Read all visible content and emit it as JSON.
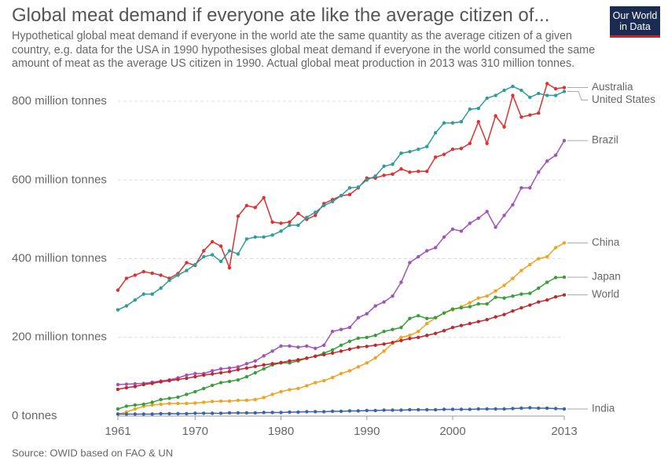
{
  "chart_data": {
    "type": "line",
    "title": "Global meat demand if everyone ate like the average citizen of...",
    "subtitle": "Hypothetical global meat demand if everyone in the world ate the same quantity as the average citizen of a given country, e.g. data for the USA in 1990 hypothesises global meat demand if everyone in the world consumed the same amount of meat as the average US citizen in 1990. Actual global meat production in 2013 was 310 million tonnes.",
    "source": "Source: OWID based on FAO & UN",
    "logo": [
      "Our World",
      "in Data"
    ],
    "x": [
      1961,
      1962,
      1963,
      1964,
      1965,
      1966,
      1967,
      1968,
      1969,
      1970,
      1971,
      1972,
      1973,
      1974,
      1975,
      1976,
      1977,
      1978,
      1979,
      1980,
      1981,
      1982,
      1983,
      1984,
      1985,
      1986,
      1987,
      1988,
      1989,
      1990,
      1991,
      1992,
      1993,
      1994,
      1995,
      1996,
      1997,
      1998,
      1999,
      2000,
      2001,
      2002,
      2003,
      2004,
      2005,
      2006,
      2007,
      2008,
      2009,
      2010,
      2011,
      2012,
      2013
    ],
    "xlim": [
      1961,
      2013
    ],
    "xticks": [
      1961,
      1970,
      1980,
      1990,
      2000,
      2013
    ],
    "ylim": [
      0,
      850
    ],
    "yticks": [
      {
        "value": 0,
        "label": "0 tonnes"
      },
      {
        "value": 200,
        "label": "200 million tonnes"
      },
      {
        "value": 400,
        "label": "400 million tonnes"
      },
      {
        "value": 600,
        "label": "600 million tonnes"
      },
      {
        "value": 800,
        "label": "800 million tonnes"
      }
    ],
    "grid": true,
    "series": [
      {
        "name": "Australia",
        "color": "#e0302f",
        "values": [
          320,
          350,
          358,
          367,
          363,
          358,
          350,
          362,
          390,
          383,
          420,
          443,
          432,
          377,
          508,
          535,
          530,
          555,
          493,
          490,
          493,
          515,
          500,
          510,
          540,
          550,
          560,
          563,
          580,
          605,
          605,
          612,
          615,
          628,
          620,
          622,
          622,
          658,
          665,
          678,
          680,
          693,
          748,
          693,
          763,
          735,
          815,
          760,
          765,
          770,
          845,
          832,
          835
        ]
      },
      {
        "name": "United States",
        "color": "#2a9d9c",
        "values": [
          270,
          280,
          295,
          310,
          310,
          325,
          345,
          358,
          370,
          385,
          405,
          410,
          393,
          420,
          412,
          450,
          455,
          455,
          460,
          470,
          485,
          485,
          505,
          518,
          535,
          545,
          560,
          580,
          582,
          600,
          610,
          635,
          640,
          668,
          672,
          678,
          685,
          720,
          745,
          745,
          748,
          780,
          782,
          808,
          815,
          828,
          838,
          828,
          810,
          820,
          815,
          815,
          825
        ]
      },
      {
        "name": "Brazil",
        "color": "#a252b8",
        "values": [
          80,
          81,
          82,
          83,
          86,
          89,
          92,
          97,
          104,
          108,
          108,
          115,
          120,
          122,
          125,
          133,
          140,
          153,
          165,
          178,
          178,
          175,
          178,
          172,
          180,
          215,
          220,
          225,
          250,
          260,
          280,
          290,
          305,
          340,
          390,
          405,
          420,
          428,
          455,
          475,
          470,
          490,
          503,
          520,
          480,
          510,
          537,
          580,
          580,
          620,
          648,
          663,
          700
        ]
      },
      {
        "name": "China",
        "color": "#f4a11f",
        "values": [
          5,
          10,
          18,
          25,
          28,
          30,
          32,
          32,
          32,
          33,
          35,
          37,
          38,
          38,
          40,
          40,
          42,
          47,
          55,
          62,
          67,
          70,
          77,
          85,
          90,
          98,
          108,
          115,
          125,
          135,
          148,
          165,
          185,
          200,
          205,
          215,
          235,
          250,
          262,
          270,
          278,
          288,
          300,
          305,
          318,
          332,
          350,
          370,
          385,
          400,
          405,
          428,
          440
        ]
      },
      {
        "name": "Japan",
        "color": "#389e3a",
        "values": [
          18,
          25,
          28,
          30,
          35,
          42,
          45,
          48,
          55,
          62,
          70,
          78,
          85,
          88,
          92,
          100,
          110,
          120,
          130,
          135,
          135,
          140,
          147,
          152,
          160,
          168,
          180,
          190,
          198,
          200,
          205,
          215,
          220,
          225,
          248,
          255,
          248,
          250,
          262,
          272,
          275,
          278,
          285,
          285,
          302,
          300,
          305,
          310,
          312,
          325,
          340,
          352,
          353
        ]
      },
      {
        "name": "World",
        "color": "#c0282c",
        "values": [
          68,
          72,
          75,
          80,
          83,
          87,
          90,
          93,
          96,
          100,
          104,
          107,
          110,
          113,
          118,
          122,
          126,
          130,
          133,
          136,
          140,
          143,
          147,
          152,
          156,
          160,
          165,
          170,
          175,
          177,
          180,
          183,
          187,
          192,
          197,
          200,
          205,
          210,
          217,
          225,
          230,
          235,
          240,
          245,
          252,
          258,
          267,
          275,
          282,
          290,
          295,
          303,
          308
        ]
      },
      {
        "name": "India",
        "color": "#3a63ad",
        "values": [
          5,
          5,
          5,
          5,
          5,
          6,
          6,
          6,
          6,
          7,
          7,
          7,
          7,
          8,
          8,
          8,
          8,
          9,
          9,
          9,
          10,
          10,
          11,
          11,
          11,
          12,
          12,
          13,
          13,
          14,
          14,
          15,
          15,
          15,
          16,
          16,
          16,
          16,
          17,
          17,
          17,
          17,
          18,
          18,
          18,
          18,
          19,
          20,
          21,
          20,
          20,
          19,
          18
        ]
      }
    ]
  }
}
